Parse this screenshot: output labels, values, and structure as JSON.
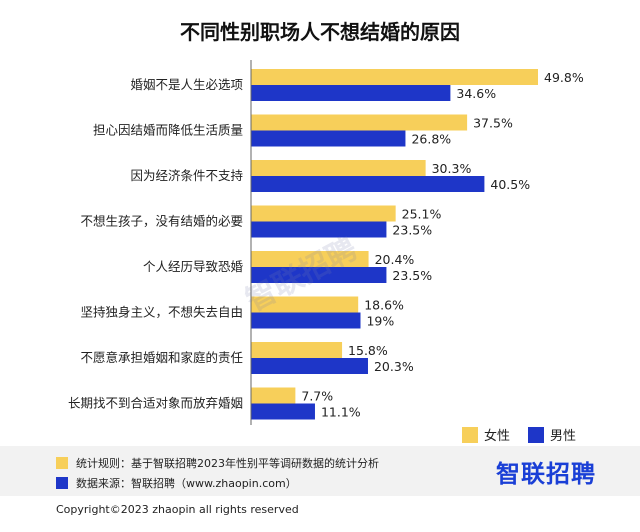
{
  "title": "不同性别职场人不想结婚的原因",
  "legend": {
    "female": "女性",
    "male": "男性"
  },
  "colors": {
    "female": "#f7cf5a",
    "male": "#1e36c8"
  },
  "notes": [
    {
      "text": "统计规则：基于智联招聘2023年性别平等调研数据的统计分析",
      "color": "#f7cf5a"
    },
    {
      "text": "数据来源：智联招聘（www.zhaopin.com）",
      "color": "#1e36c8"
    }
  ],
  "brand": "智联招聘",
  "watermark": "智联招聘",
  "copyright": "Copyright©2023 zhaopin all rights reserved",
  "chart_data": {
    "type": "bar",
    "orientation": "horizontal",
    "title": "不同性别职场人不想结婚的原因",
    "categories": [
      "婚姻不是人生必选项",
      "担心因结婚而降低生活质量",
      "因为经济条件不支持",
      "不想生孩子，没有结婚的必要",
      "个人经历导致恐婚",
      "坚持独身主义，不想失去自由",
      "不愿意承担婚姻和家庭的责任",
      "长期找不到合适对象而放弃婚姻"
    ],
    "series": [
      {
        "name": "女性",
        "values": [
          49.8,
          37.5,
          30.3,
          25.1,
          20.4,
          18.6,
          15.8,
          7.7
        ],
        "labels": [
          "49.8%",
          "37.5%",
          "30.3%",
          "25.1%",
          "20.4%",
          "18.6%",
          "15.8%",
          "7.7%"
        ]
      },
      {
        "name": "男性",
        "values": [
          34.6,
          26.8,
          40.5,
          23.5,
          23.5,
          19,
          20.3,
          11.1
        ],
        "labels": [
          "34.6%",
          "26.8%",
          "40.5%",
          "23.5%",
          "23.5%",
          "19%",
          "20.3%",
          "11.1%"
        ]
      }
    ],
    "legend_position": "bottom-right",
    "grid": false
  }
}
